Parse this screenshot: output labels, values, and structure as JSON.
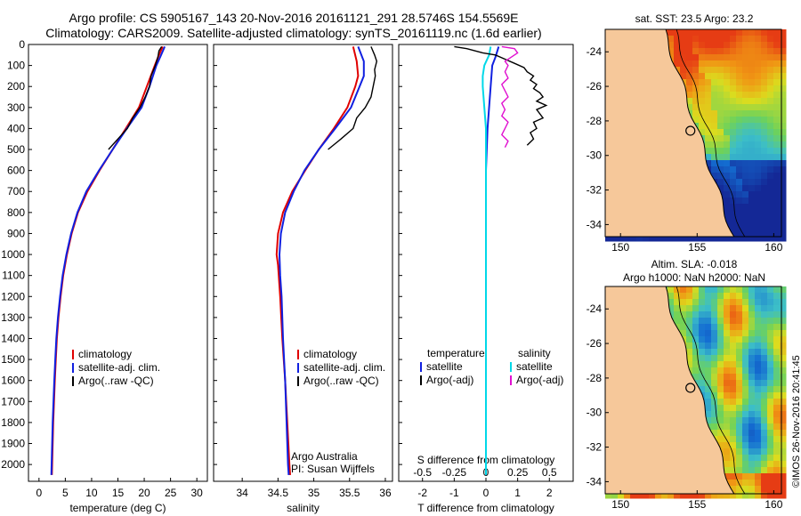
{
  "header": {
    "line1": "Argo profile: CS 5905167_143 20-Nov-2016 20161121_291 28.5746S 154.5569E",
    "line2": "Climatology: CARS2009. Satellite-adjusted climatology: synTS_20161119.nc (1.6d earlier)"
  },
  "map_top_title": "sat. SST: 23.5 Argo: 23.2",
  "map_bottom_title1": "Altim. SLA: -0.018",
  "map_bottom_title2": "Argo h1000: NaN h2000: NaN",
  "stamp": "©IMOS 26-Nov-2016 20:41:45",
  "colors": {
    "climatology": "#e00000",
    "satellite": "#1020e0",
    "argo": "#000000",
    "sal_satellite": "#00d8e8",
    "sal_argo": "#e010d0",
    "land": "#f6c89a"
  },
  "chart_data": [
    {
      "type": "line",
      "xlabel": "temperature (deg C)",
      "ylabel": "",
      "xlim": [
        -2,
        32
      ],
      "ylim": [
        2080,
        0
      ],
      "xticks": [
        0,
        5,
        10,
        15,
        20,
        25,
        30
      ],
      "yticks": [
        0,
        100,
        200,
        300,
        400,
        500,
        600,
        700,
        800,
        900,
        1000,
        1100,
        1200,
        1300,
        1400,
        1500,
        1600,
        1700,
        1800,
        1900,
        2000
      ],
      "legend": [
        "climatology",
        "satellite-adj. clim.",
        "Argo(..raw -QC)"
      ],
      "series": [
        {
          "name": "climatology",
          "color": "#e00000",
          "points": [
            [
              23.5,
              10
            ],
            [
              22.8,
              50
            ],
            [
              22,
              100
            ],
            [
              20.5,
              200
            ],
            [
              19,
              300
            ],
            [
              16.5,
              400
            ],
            [
              14,
              500
            ],
            [
              11.5,
              600
            ],
            [
              9.2,
              700
            ],
            [
              7.4,
              800
            ],
            [
              6.2,
              900
            ],
            [
              5.3,
              1000
            ],
            [
              4.6,
              1100
            ],
            [
              4.1,
              1200
            ],
            [
              3.7,
              1300
            ],
            [
              3.4,
              1400
            ],
            [
              3.2,
              1500
            ],
            [
              3,
              1600
            ],
            [
              2.85,
              1700
            ],
            [
              2.7,
              1800
            ],
            [
              2.6,
              1900
            ],
            [
              2.5,
              2000
            ],
            [
              2.45,
              2050
            ]
          ]
        },
        {
          "name": "satellite-adj. clim.",
          "color": "#1020e0",
          "points": [
            [
              23.9,
              10
            ],
            [
              23.2,
              50
            ],
            [
              22.3,
              100
            ],
            [
              21,
              200
            ],
            [
              19.5,
              300
            ],
            [
              16.7,
              400
            ],
            [
              14,
              500
            ],
            [
              11.4,
              600
            ],
            [
              9,
              700
            ],
            [
              7.3,
              800
            ],
            [
              6.1,
              900
            ],
            [
              5.2,
              1000
            ],
            [
              4.5,
              1100
            ],
            [
              4,
              1200
            ],
            [
              3.6,
              1300
            ],
            [
              3.3,
              1400
            ],
            [
              3.1,
              1500
            ],
            [
              2.9,
              1600
            ],
            [
              2.75,
              1700
            ],
            [
              2.6,
              1800
            ],
            [
              2.5,
              1900
            ],
            [
              2.4,
              2000
            ],
            [
              2.35,
              2050
            ]
          ]
        },
        {
          "name": "Argo(..raw -QC)",
          "color": "#000000",
          "points": [
            [
              23.3,
              10
            ],
            [
              22.8,
              30
            ],
            [
              22.6,
              60
            ],
            [
              22.1,
              100
            ],
            [
              21.3,
              150
            ],
            [
              21.0,
              200
            ],
            [
              20.2,
              250
            ],
            [
              19.2,
              300
            ],
            [
              17.8,
              350
            ],
            [
              16.8,
              400
            ],
            [
              15.0,
              450
            ],
            [
              13.2,
              500
            ]
          ]
        }
      ]
    },
    {
      "type": "line",
      "xlabel": "salinity",
      "ylabel": "",
      "xlim": [
        33.6,
        36.1
      ],
      "ylim": [
        2080,
        0
      ],
      "xticks": [
        34,
        34.5,
        35,
        35.5,
        36
      ],
      "legend": [
        "climatology",
        "satellite-adj. clim.",
        "Argo(..raw -QC)"
      ],
      "annotations": [
        "Argo Australia",
        "PI: Susan Wijffels"
      ],
      "series": [
        {
          "name": "climatology",
          "color": "#e00000",
          "points": [
            [
              35.55,
              10
            ],
            [
              35.6,
              80
            ],
            [
              35.62,
              150
            ],
            [
              35.58,
              200
            ],
            [
              35.47,
              300
            ],
            [
              35.28,
              400
            ],
            [
              35.07,
              500
            ],
            [
              34.88,
              600
            ],
            [
              34.7,
              700
            ],
            [
              34.57,
              800
            ],
            [
              34.5,
              900
            ],
            [
              34.48,
              1000
            ],
            [
              34.5,
              1050
            ],
            [
              34.53,
              1200
            ],
            [
              34.56,
              1400
            ],
            [
              34.6,
              1600
            ],
            [
              34.63,
              1800
            ],
            [
              34.66,
              2000
            ],
            [
              34.67,
              2050
            ]
          ]
        },
        {
          "name": "satellite-adj. clim.",
          "color": "#1020e0",
          "points": [
            [
              35.62,
              10
            ],
            [
              35.7,
              80
            ],
            [
              35.7,
              150
            ],
            [
              35.64,
              200
            ],
            [
              35.52,
              300
            ],
            [
              35.3,
              400
            ],
            [
              35.07,
              500
            ],
            [
              34.87,
              600
            ],
            [
              34.72,
              700
            ],
            [
              34.6,
              800
            ],
            [
              34.54,
              900
            ],
            [
              34.52,
              1000
            ],
            [
              34.53,
              1100
            ],
            [
              34.55,
              1200
            ],
            [
              34.57,
              1400
            ],
            [
              34.6,
              1600
            ],
            [
              34.62,
              1800
            ],
            [
              34.64,
              2000
            ],
            [
              34.65,
              2050
            ]
          ]
        },
        {
          "name": "Argo(..raw -QC)",
          "color": "#000000",
          "points": [
            [
              35.8,
              10
            ],
            [
              35.85,
              50
            ],
            [
              35.88,
              80
            ],
            [
              35.85,
              120
            ],
            [
              35.86,
              150
            ],
            [
              35.83,
              200
            ],
            [
              35.8,
              250
            ],
            [
              35.72,
              300
            ],
            [
              35.6,
              350
            ],
            [
              35.55,
              400
            ],
            [
              35.38,
              450
            ],
            [
              35.2,
              500
            ]
          ]
        }
      ]
    },
    {
      "type": "line",
      "xlabel": "T difference from climatology",
      "xlabel_top": "S difference from climatology",
      "ylabel": "",
      "xlim": [
        -2.75,
        2.75
      ],
      "ylim": [
        2080,
        0
      ],
      "xticks": [
        -2,
        -1,
        0,
        1,
        2
      ],
      "sticks": [
        "-0.5",
        "-0.25",
        "0",
        "0.25",
        "0.5"
      ],
      "legend_temperature_title": "temperature",
      "legend_salinity_title": "salinity",
      "legend_temperature": [
        "satellite",
        "Argo(-adj)"
      ],
      "legend_salinity": [
        "satellite",
        "Argo(-adj)"
      ],
      "series": [
        {
          "name": "temperature satellite",
          "color": "#1020e0",
          "points": [
            [
              0.4,
              10
            ],
            [
              0.3,
              60
            ],
            [
              0.2,
              100
            ],
            [
              0.15,
              200
            ],
            [
              0.05,
              400
            ],
            [
              0,
              600
            ],
            [
              0,
              2050
            ]
          ]
        },
        {
          "name": "salinity satellite",
          "color": "#00d8e8",
          "points": [
            [
              0.15,
              10
            ],
            [
              0.1,
              50
            ],
            [
              -0.05,
              100
            ],
            [
              -0.1,
              150
            ],
            [
              -0.1,
              200
            ],
            [
              -0.05,
              300
            ],
            [
              0,
              400
            ],
            [
              0,
              500
            ],
            [
              0,
              2050
            ]
          ]
        },
        {
          "name": "temperature Argo(-adj)",
          "color": "#000000",
          "points": [
            [
              -1,
              10
            ],
            [
              -0.6,
              20
            ],
            [
              -0.1,
              40
            ],
            [
              0.3,
              50
            ],
            [
              0.6,
              70
            ],
            [
              0.9,
              90
            ],
            [
              1.2,
              110
            ],
            [
              1.3,
              130
            ],
            [
              1.5,
              150
            ],
            [
              1.4,
              170
            ],
            [
              1.6,
              190
            ],
            [
              1.5,
              210
            ],
            [
              1.7,
              230
            ],
            [
              1.8,
              250
            ],
            [
              1.6,
              270
            ],
            [
              1.9,
              290
            ],
            [
              1.6,
              310
            ],
            [
              1.7,
              330
            ],
            [
              1.8,
              350
            ],
            [
              1.5,
              370
            ],
            [
              1.6,
              400
            ],
            [
              1.4,
              420
            ],
            [
              1.5,
              450
            ],
            [
              1.3,
              480
            ]
          ]
        },
        {
          "name": "salinity Argo(-adj)",
          "color": "#e010d0",
          "points": [
            [
              0.5,
              10
            ],
            [
              0.9,
              20
            ],
            [
              1.0,
              40
            ],
            [
              0.8,
              60
            ],
            [
              0.6,
              80
            ],
            [
              0.7,
              100
            ],
            [
              0.6,
              130
            ],
            [
              0.7,
              160
            ],
            [
              0.5,
              190
            ],
            [
              0.6,
              220
            ],
            [
              0.7,
              250
            ],
            [
              0.5,
              280
            ],
            [
              0.6,
              310
            ],
            [
              0.5,
              340
            ],
            [
              0.7,
              370
            ],
            [
              0.6,
              400
            ],
            [
              0.5,
              430
            ],
            [
              0.7,
              460
            ],
            [
              0.6,
              490
            ]
          ]
        }
      ]
    },
    {
      "type": "heatmap",
      "title": "sat. SST: 23.5 Argo: 23.2",
      "xlim": [
        149,
        160.5
      ],
      "ylim": [
        -34.7,
        -22.7
      ],
      "xticks": [
        150,
        155,
        160
      ],
      "yticks": [
        -24,
        -26,
        -28,
        -30,
        -32,
        -34
      ],
      "argo_position": [
        154.56,
        -28.57
      ]
    },
    {
      "type": "heatmap",
      "title": "Altim. SLA: -0.018",
      "subtitle": "Argo h1000: NaN h2000: NaN",
      "xlim": [
        149,
        160.5
      ],
      "ylim": [
        -34.7,
        -22.7
      ],
      "xticks": [
        150,
        155,
        160
      ],
      "yticks": [
        -24,
        -26,
        -28,
        -30,
        -32,
        -34
      ],
      "argo_position": [
        154.56,
        -28.57
      ]
    }
  ]
}
